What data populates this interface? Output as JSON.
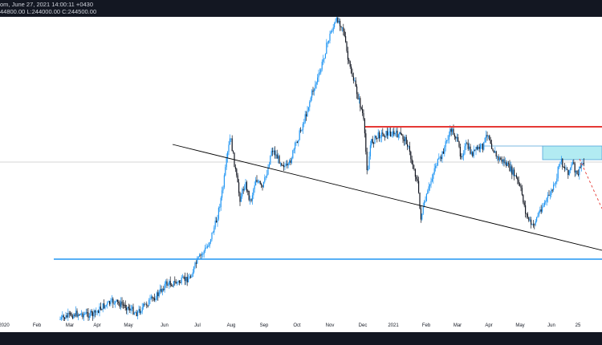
{
  "header": {
    "line1": "om, June 27, 2021 14:00:11 +0430",
    "line2": "44800.00 L:244000.00 C:244500.00"
  },
  "chart_data": {
    "type": "candlestick",
    "x_axis_ticks": [
      "2020",
      "Feb",
      "Mar",
      "Apr",
      "May",
      "Jun",
      "Jul",
      "Aug",
      "Sep",
      "Oct",
      "Nov",
      "Dec",
      "2021",
      "Feb",
      "Mar",
      "Apr",
      "May",
      "Jun",
      "25"
    ],
    "grid": false,
    "price_path": [
      [
        "2020-03-01",
        398
      ],
      [
        "2020-03-15",
        391
      ],
      [
        "2020-04-01",
        392
      ],
      [
        "2020-04-10",
        382
      ],
      [
        "2020-04-20",
        376
      ],
      [
        "2020-05-01",
        381
      ],
      [
        "2020-05-12",
        390
      ],
      [
        "2020-05-22",
        378
      ],
      [
        "2020-06-01",
        367
      ],
      [
        "2020-06-08",
        354
      ],
      [
        "2020-06-20",
        352
      ],
      [
        "2020-07-01",
        346
      ],
      [
        "2020-07-08",
        325
      ],
      [
        "2020-07-18",
        306
      ],
      [
        "2020-07-26",
        275
      ],
      [
        "2020-08-01",
        235
      ],
      [
        "2020-08-05",
        196
      ],
      [
        "2020-08-08",
        170
      ],
      [
        "2020-08-13",
        214
      ],
      [
        "2020-08-17",
        248
      ],
      [
        "2020-08-22",
        228
      ],
      [
        "2020-08-27",
        252
      ],
      [
        "2020-09-01",
        222
      ],
      [
        "2020-09-07",
        236
      ],
      [
        "2020-09-12",
        212
      ],
      [
        "2020-09-16",
        185
      ],
      [
        "2020-09-22",
        198
      ],
      [
        "2020-10-01",
        210
      ],
      [
        "2020-10-09",
        178
      ],
      [
        "2020-10-17",
        148
      ],
      [
        "2020-10-24",
        115
      ],
      [
        "2020-10-31",
        92
      ],
      [
        "2020-11-06",
        60
      ],
      [
        "2020-11-11",
        38
      ],
      [
        "2020-11-17",
        24
      ],
      [
        "2020-11-22",
        34
      ],
      [
        "2020-11-27",
        78
      ],
      [
        "2020-12-01",
        95
      ],
      [
        "2020-12-06",
        120
      ],
      [
        "2020-12-11",
        145
      ],
      [
        "2020-12-15",
        216
      ],
      [
        "2020-12-18",
        178
      ],
      [
        "2020-12-26",
        168
      ],
      [
        "2021-01-05",
        166
      ],
      [
        "2021-01-14",
        168
      ],
      [
        "2021-01-21",
        176
      ],
      [
        "2021-01-26",
        204
      ],
      [
        "2021-01-31",
        225
      ],
      [
        "2021-02-03",
        272
      ],
      [
        "2021-02-08",
        248
      ],
      [
        "2021-02-13",
        224
      ],
      [
        "2021-02-17",
        205
      ],
      [
        "2021-02-22",
        198
      ],
      [
        "2021-02-27",
        177
      ],
      [
        "2021-03-04",
        161
      ],
      [
        "2021-03-08",
        170
      ],
      [
        "2021-03-13",
        194
      ],
      [
        "2021-03-18",
        181
      ],
      [
        "2021-03-23",
        192
      ],
      [
        "2021-03-28",
        186
      ],
      [
        "2021-04-03",
        182
      ],
      [
        "2021-04-07",
        164
      ],
      [
        "2021-04-11",
        182
      ],
      [
        "2021-04-16",
        197
      ],
      [
        "2021-04-22",
        201
      ],
      [
        "2021-04-29",
        212
      ],
      [
        "2021-05-04",
        222
      ],
      [
        "2021-05-09",
        240
      ],
      [
        "2021-05-13",
        266
      ],
      [
        "2021-05-19",
        283
      ],
      [
        "2021-05-23",
        272
      ],
      [
        "2021-05-27",
        260
      ],
      [
        "2021-06-02",
        248
      ],
      [
        "2021-06-07",
        236
      ],
      [
        "2021-06-10",
        230
      ],
      [
        "2021-06-14",
        198
      ],
      [
        "2021-06-18",
        208
      ],
      [
        "2021-06-22",
        214
      ],
      [
        "2021-06-26",
        204
      ],
      [
        "2021-06-30",
        220
      ],
      [
        "2021-07-04",
        206
      ],
      [
        "2021-07-07",
        200
      ]
    ],
    "annotations": {
      "descending_trendline": "black",
      "resistance_line": "#e53935",
      "support_line": "#2196f3",
      "supply_zone": "#b2ebf2",
      "projection": "dashed red"
    },
    "colors": {
      "up": "#2196f3",
      "down": "#131722"
    }
  }
}
